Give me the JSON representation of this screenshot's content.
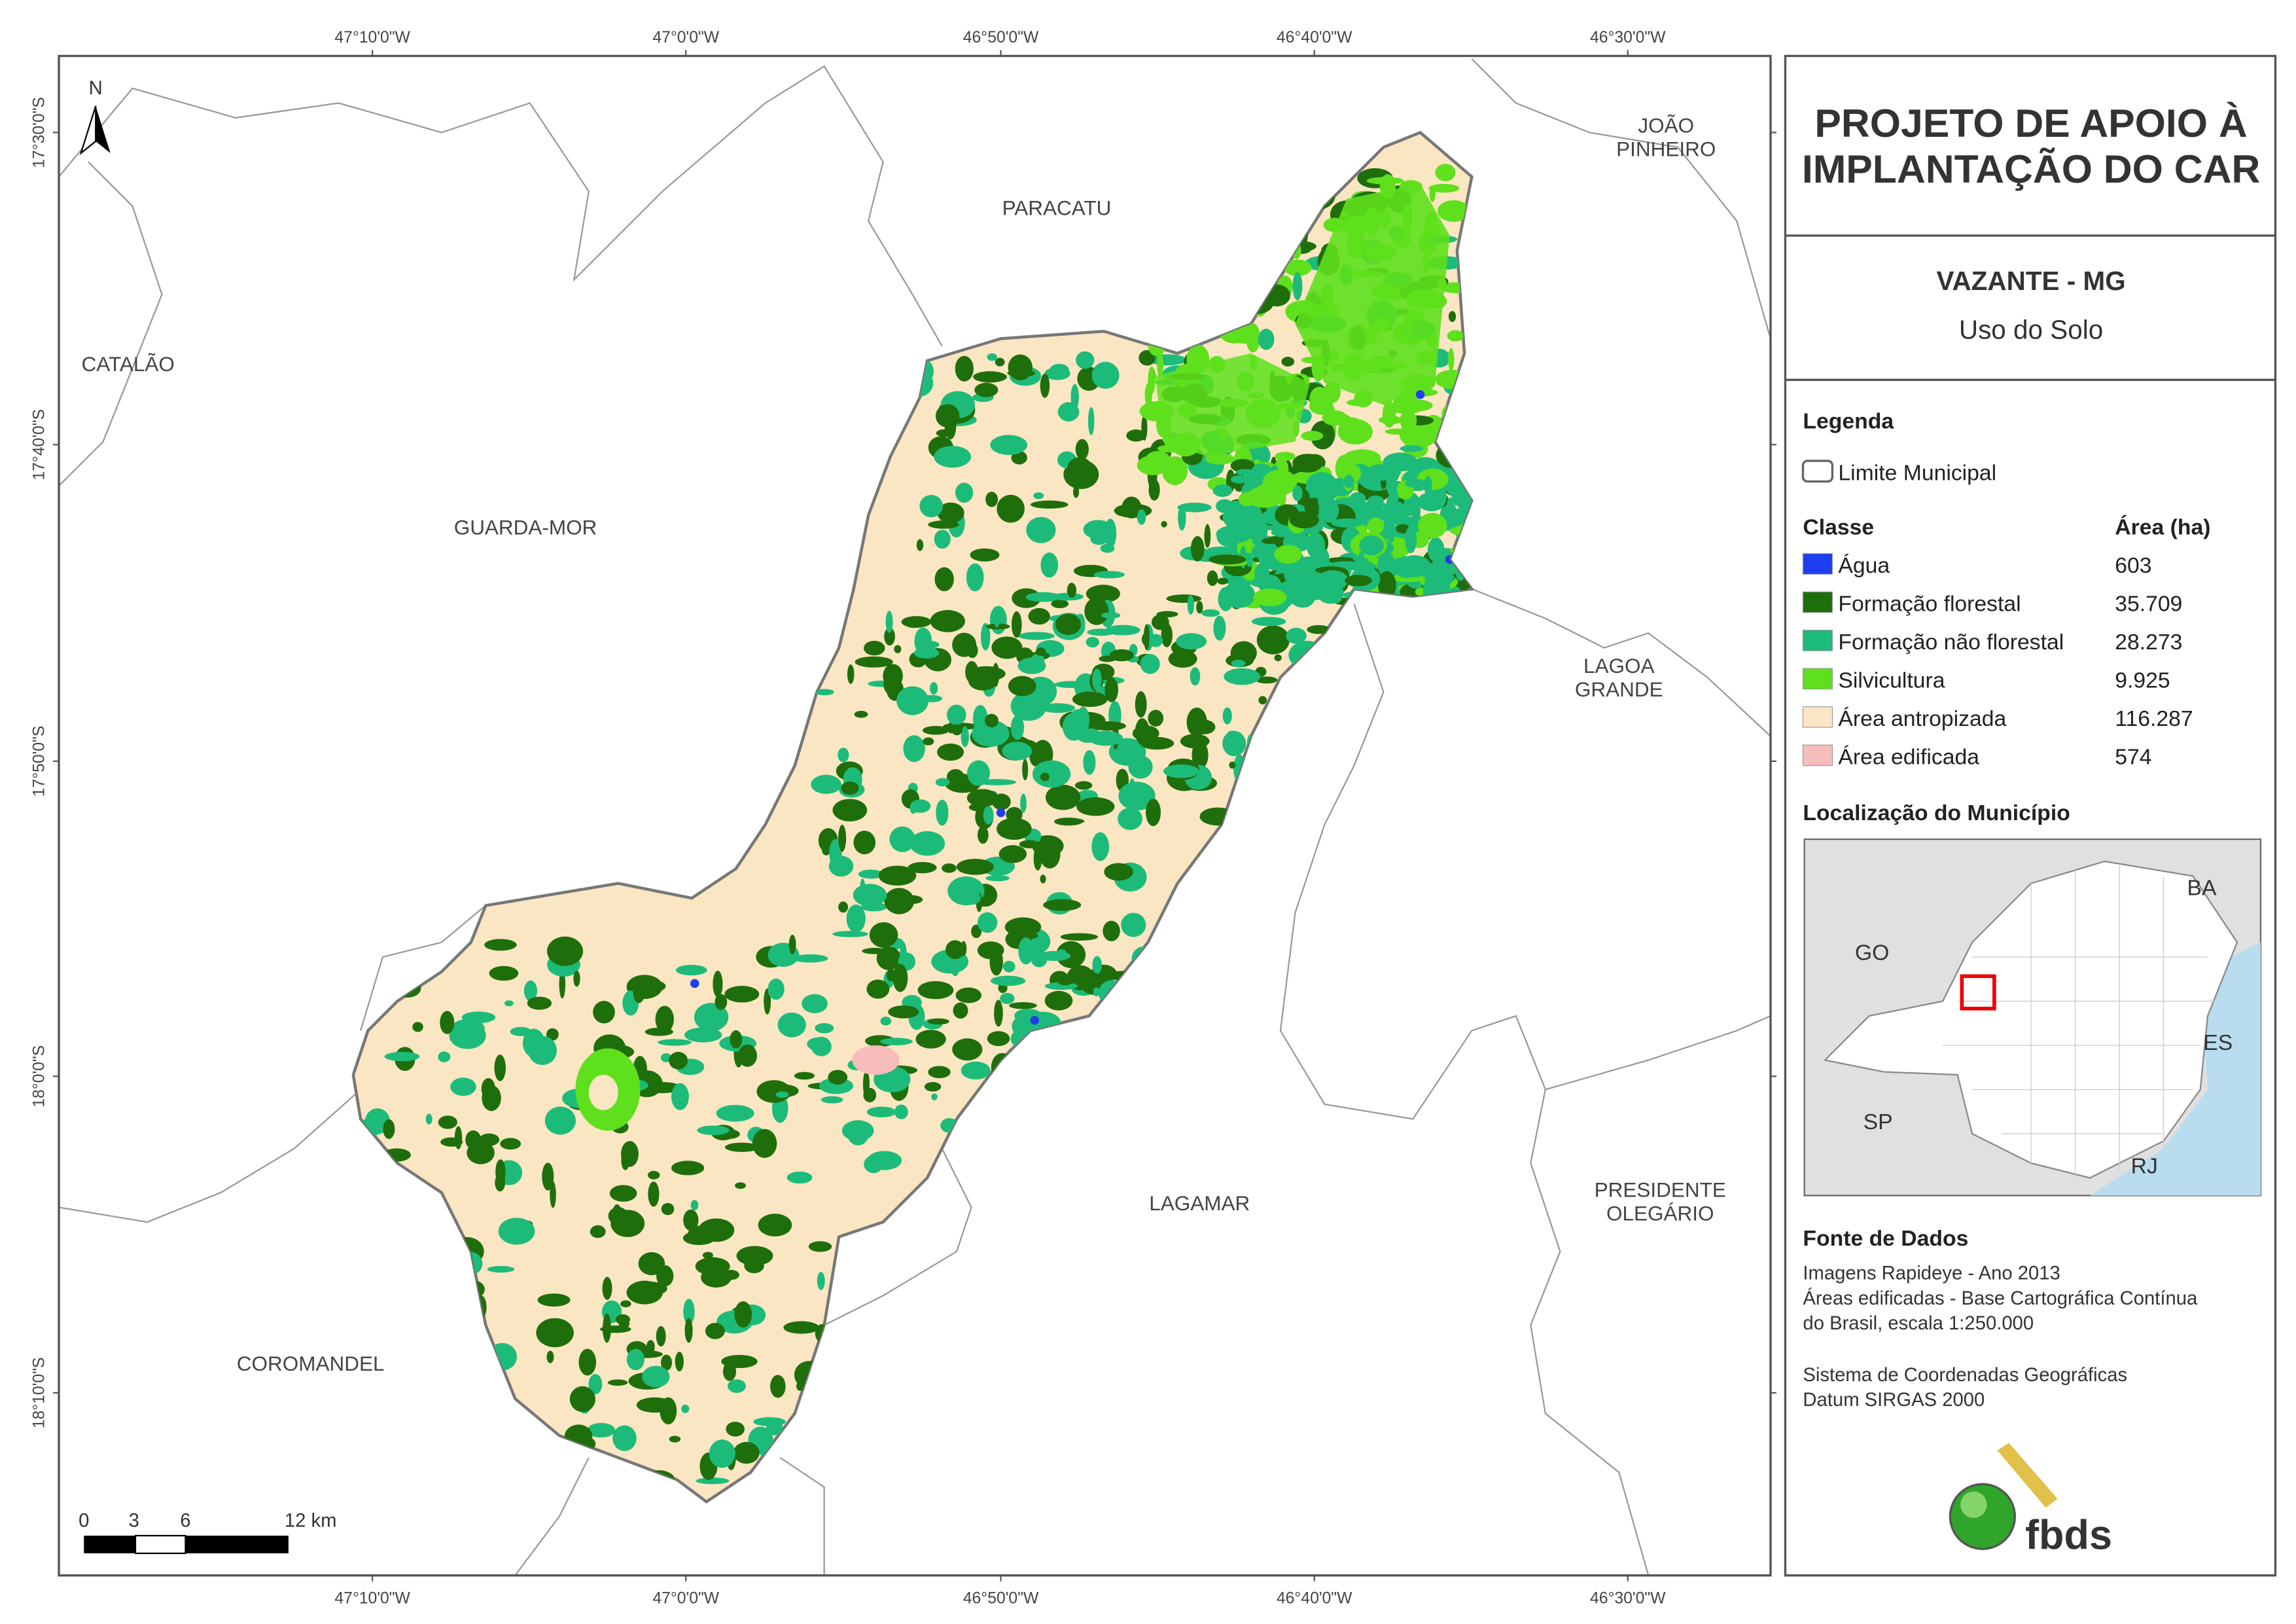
{
  "map": {
    "coordinates": {
      "top": [
        "47°10'0\"W",
        "47°0'0\"W",
        "46°50'0\"W",
        "46°40'0\"W",
        "46°30'0\"W"
      ],
      "bottom": [
        "47°10'0\"W",
        "47°0'0\"W",
        "46°50'0\"W",
        "46°40'0\"W",
        "46°30'0\"W"
      ],
      "left": [
        "17°30'0\"S",
        "17°40'0\"S",
        "17°50'0\"S",
        "18°0'0\"S",
        "18°10'0\"S"
      ]
    },
    "places": [
      [
        "PARACATU"
      ],
      [
        "JOÃO",
        "PINHEIRO"
      ],
      [
        "CATALÃO"
      ],
      [
        "GUARDA-MOR"
      ],
      [
        "LAGOA",
        "GRANDE"
      ],
      [
        "LAGAMAR"
      ],
      [
        "PRESIDENTE",
        "OLEGÁRIO"
      ],
      [
        "COROMANDEL"
      ]
    ],
    "north": "N",
    "scale": [
      "0",
      "3",
      "6",
      "12 km"
    ]
  },
  "panel": {
    "title": [
      "PROJETO DE APOIO À",
      "IMPLANTAÇÃO DO CAR"
    ],
    "subtitle": "VAZANTE - MG",
    "theme": "Uso do Solo",
    "legend": {
      "heading": "Legenda",
      "boundary": "Limite Municipal",
      "class_header": "Classe",
      "area_header": "Área (ha)",
      "classes": [
        {
          "name": "Água",
          "area": "603",
          "color": "#1e3ff0"
        },
        {
          "name": "Formação florestal",
          "area": "35.709",
          "color": "#1f6e0c"
        },
        {
          "name": "Formação não florestal",
          "area": "28.273",
          "color": "#1dbb7a"
        },
        {
          "name": "Silvicultura",
          "area": "9.925",
          "color": "#5ee01c"
        },
        {
          "name": "Área antropizada",
          "area": "116.287",
          "color": "#fae6c2"
        },
        {
          "name": "Área edificada",
          "area": "574",
          "color": "#f7bcbc"
        }
      ]
    },
    "location": {
      "heading": "Localização do Município",
      "labels": [
        "BA",
        "GO",
        "ES",
        "SP",
        "RJ"
      ]
    },
    "sources": {
      "heading": "Fonte de Dados",
      "imagery": [
        "Imagens Rapideye - Ano 2013",
        "Áreas edificadas - Base Cartográfica Contínua",
        "do Brasil, escala 1:250.000"
      ],
      "reference": [
        "Sistema de Coordenadas Geográficas",
        "Datum SIRGAS 2000"
      ]
    },
    "logo": "fbds"
  }
}
